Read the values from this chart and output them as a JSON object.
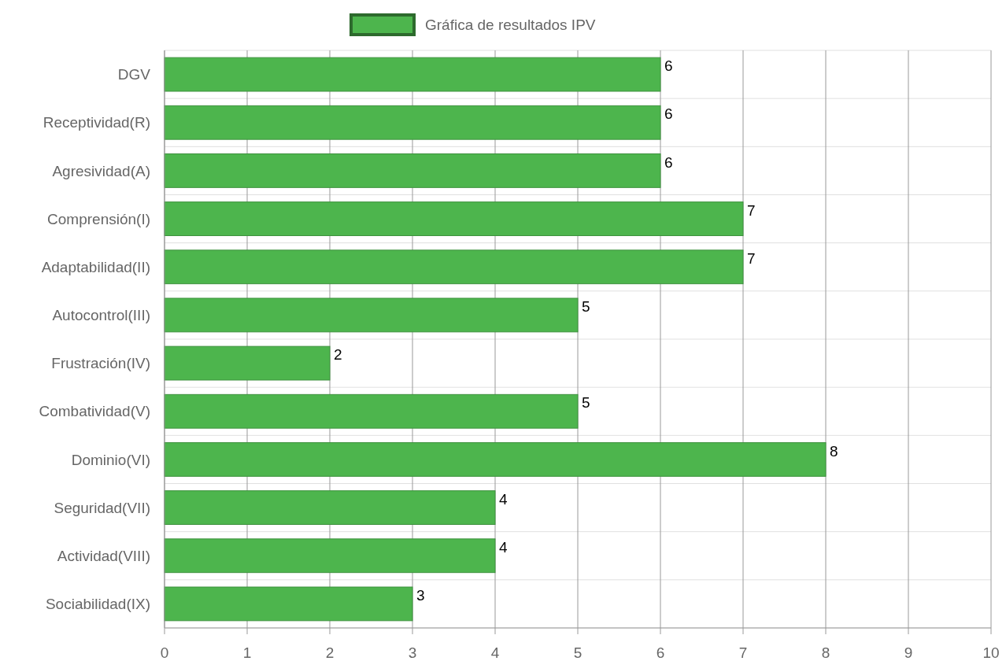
{
  "chart_data": {
    "type": "bar",
    "orientation": "horizontal",
    "categories": [
      "DGV",
      "Receptividad(R)",
      "Agresividad(A)",
      "Comprensión(I)",
      "Adaptabilidad(II)",
      "Autocontrol(III)",
      "Frustración(IV)",
      "Combatividad(V)",
      "Dominio(VI)",
      "Seguridad(VII)",
      "Actividad(VIII)",
      "Sociabilidad(IX)"
    ],
    "series": [
      {
        "name": "Gráfica de resultados IPV",
        "color": "#4db54d",
        "values": [
          6,
          6,
          6,
          7,
          7,
          5,
          2,
          5,
          8,
          4,
          4,
          3
        ]
      }
    ],
    "xlim": [
      0,
      10
    ],
    "xticks": [
      0,
      1,
      2,
      3,
      4,
      5,
      6,
      7,
      8,
      9,
      10
    ],
    "grid": true,
    "legend": "top",
    "data_labels": true
  }
}
